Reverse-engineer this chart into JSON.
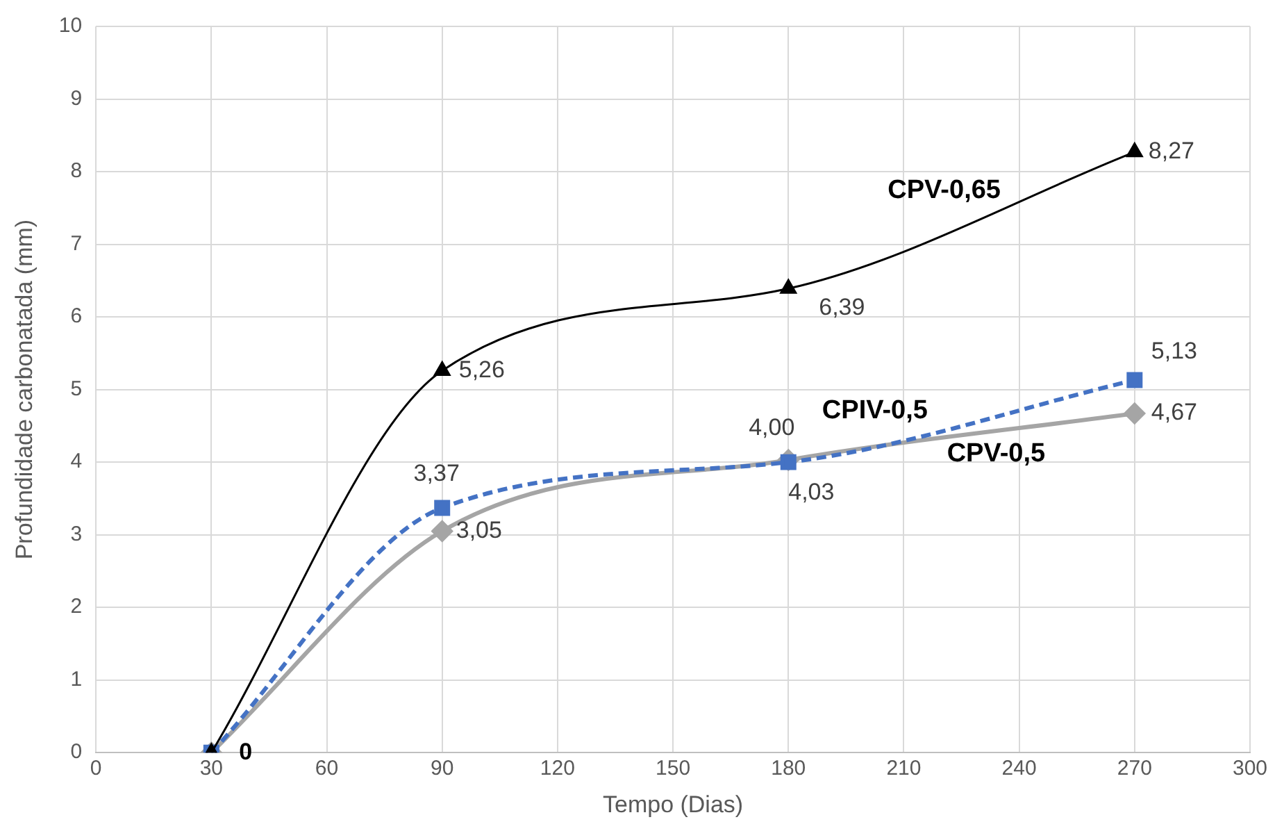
{
  "chart_data": {
    "type": "line",
    "xlabel": "Tempo (Dias)",
    "ylabel": "Profundidade carbonatada (mm)",
    "x": [
      30,
      90,
      180,
      270
    ],
    "series": [
      {
        "name": "CPV-0,65",
        "color": "#000000",
        "marker": "triangle",
        "line_style": "solid",
        "values": [
          0,
          5.26,
          6.39,
          8.27
        ],
        "value_labels": [
          "0",
          "5,26",
          "6,39",
          "8,27"
        ]
      },
      {
        "name": "CPIV-0,5",
        "color": "#4472c4",
        "marker": "square",
        "line_style": "dashed",
        "values": [
          0,
          3.37,
          4.0,
          5.13
        ],
        "value_labels": [
          null,
          "3,37",
          "4,00",
          "5,13"
        ]
      },
      {
        "name": "CPV-0,5",
        "color": "#a5a5a5",
        "marker": "diamond",
        "line_style": "solid",
        "values": [
          0,
          3.05,
          4.03,
          4.67
        ],
        "value_labels": [
          null,
          "3,05",
          "4,03",
          "4,67"
        ]
      }
    ],
    "xlim": [
      0,
      300
    ],
    "xticks": [
      0,
      30,
      60,
      90,
      120,
      150,
      180,
      210,
      240,
      270,
      300
    ],
    "ylim": [
      0,
      10
    ],
    "yticks": [
      0,
      1,
      2,
      3,
      4,
      5,
      6,
      7,
      8,
      9,
      10
    ],
    "grid": true,
    "legend": false
  }
}
